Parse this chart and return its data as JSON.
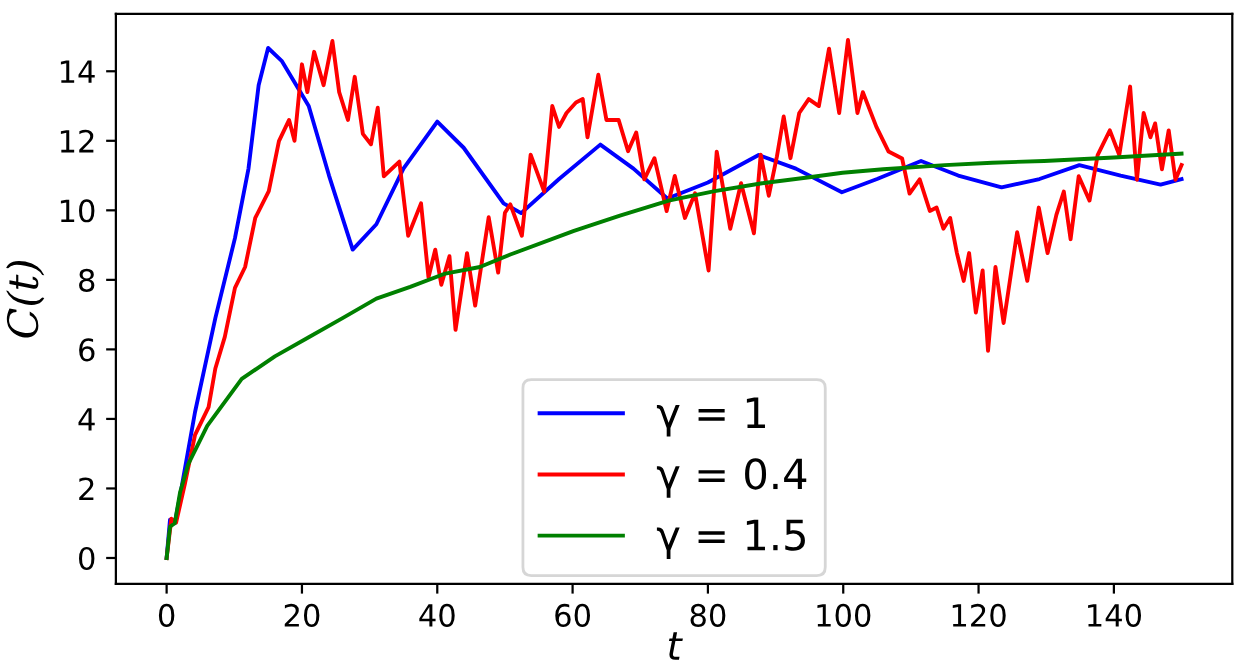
{
  "chart_data": {
    "type": "line",
    "xlabel": "t",
    "ylabel": "C(t)",
    "xlim": [
      -7.5,
      157.5
    ],
    "ylim": [
      -0.745,
      15.65
    ],
    "xticks": [
      0,
      20,
      40,
      60,
      80,
      100,
      120,
      140
    ],
    "yticks": [
      0,
      2,
      4,
      6,
      8,
      10,
      12,
      14
    ],
    "grid": false,
    "legend": "bottom",
    "marker": "none",
    "line_style": "solid",
    "series": [
      {
        "name": "γ = 1",
        "color": "#0000ff",
        "x": [
          0,
          0.5,
          1.2,
          2,
          4.2,
          7.2,
          10.1,
          12.1,
          13.6,
          15.0,
          17,
          21,
          24,
          27.5,
          31,
          35,
          40,
          43.9,
          49.8,
          52.4,
          58,
          64.1,
          69,
          74,
          80,
          87.5,
          93,
          99.8,
          105,
          111.5,
          117,
          123.4,
          129,
          134.9,
          141,
          146.9,
          150
        ],
        "values": [
          0,
          1.1,
          1.0,
          1.8,
          4.2,
          6.9,
          9.2,
          11.2,
          13.6,
          14.67,
          14.3,
          13.0,
          11.0,
          8.87,
          9.6,
          11.2,
          12.55,
          11.8,
          10.2,
          9.92,
          10.9,
          11.89,
          11.2,
          10.34,
          10.8,
          11.59,
          11.2,
          10.52,
          10.9,
          11.42,
          11.0,
          10.66,
          10.9,
          11.3,
          11.0,
          10.74,
          10.9
        ]
      },
      {
        "name": "γ = 0.4",
        "color": "#ff0000",
        "x": [
          0,
          0.7,
          1.4,
          2.7,
          4.2,
          6.2,
          7.2,
          8.6,
          10.1,
          11.6,
          13.1,
          15.1,
          16.6,
          18.1,
          18.9,
          20.0,
          20.8,
          21.8,
          23.2,
          24.5,
          25.5,
          26.8,
          27.8,
          29.0,
          30.2,
          31.2,
          32.1,
          34.4,
          35.7,
          37.6,
          38.7,
          39.7,
          40.6,
          41.8,
          42.7,
          44.4,
          45.6,
          47.6,
          49.0,
          50.0,
          50.8,
          52.5,
          53.8,
          55.8,
          57.0,
          58.0,
          59.1,
          60.5,
          61.5,
          62.2,
          63.8,
          65.0,
          66.8,
          68.2,
          69.4,
          70.6,
          72.1,
          73.9,
          75.1,
          76.6,
          78.1,
          80.1,
          81.3,
          83.3,
          84.9,
          86.8,
          87.8,
          89.0,
          90.2,
          91.2,
          92.2,
          93.5,
          94.9,
          96.4,
          97.9,
          99.4,
          100.7,
          102.1,
          102.9,
          104.9,
          106.7,
          108.7,
          109.8,
          111.3,
          112.8,
          113.8,
          114.8,
          115.8,
          116.8,
          117.8,
          118.6,
          119.6,
          120.6,
          121.4,
          122.5,
          123.7,
          125.7,
          127.2,
          128.9,
          130.2,
          131.5,
          132.6,
          133.6,
          134.8,
          136.4,
          137.6,
          139.4,
          140.8,
          142.4,
          143.4,
          144.4,
          145.4,
          146.1,
          147.1,
          148.1,
          149.1,
          150
        ],
        "values": [
          0,
          1.13,
          1.02,
          2.13,
          3.54,
          4.34,
          5.45,
          6.36,
          7.77,
          8.37,
          9.78,
          10.55,
          11.99,
          12.6,
          12.0,
          14.2,
          13.4,
          14.56,
          13.6,
          14.87,
          13.4,
          12.6,
          13.84,
          12.2,
          11.9,
          12.95,
          10.98,
          11.4,
          9.27,
          10.2,
          8.07,
          8.87,
          7.86,
          8.68,
          6.56,
          8.77,
          7.26,
          9.8,
          8.21,
          9.93,
          10.17,
          9.27,
          11.6,
          10.54,
          13.0,
          12.4,
          12.8,
          13.1,
          13.2,
          12.1,
          13.9,
          12.6,
          12.6,
          11.7,
          12.24,
          10.89,
          11.5,
          9.98,
          10.99,
          9.78,
          10.49,
          8.27,
          11.69,
          9.47,
          10.78,
          9.34,
          11.6,
          10.42,
          11.55,
          12.7,
          11.5,
          12.8,
          13.2,
          13.0,
          14.65,
          12.8,
          14.9,
          12.8,
          13.4,
          12.4,
          11.69,
          11.49,
          10.48,
          10.89,
          9.98,
          10.08,
          9.47,
          9.78,
          8.77,
          7.97,
          8.77,
          7.06,
          8.27,
          5.96,
          8.37,
          6.76,
          9.37,
          7.97,
          10.08,
          8.77,
          9.87,
          10.54,
          9.17,
          10.98,
          10.28,
          11.59,
          12.3,
          11.59,
          13.56,
          10.88,
          12.8,
          12.1,
          12.5,
          11.18,
          12.3,
          10.88,
          11.3
        ]
      },
      {
        "name": "γ = 1.5",
        "color": "#008000",
        "x": [
          0,
          0.5,
          1.2,
          2,
          3.2,
          6,
          11.1,
          16,
          21,
          26,
          31,
          36,
          41,
          46.3,
          50.8,
          60.2,
          67,
          74.2,
          81,
          88,
          95,
          99.9,
          105.9,
          115,
          122,
          129.7,
          140,
          150
        ],
        "values": [
          0,
          0.9,
          1.0,
          1.9,
          2.7,
          3.8,
          5.15,
          5.8,
          6.35,
          6.9,
          7.46,
          7.8,
          8.17,
          8.37,
          8.73,
          9.41,
          9.85,
          10.28,
          10.55,
          10.78,
          10.95,
          11.08,
          11.18,
          11.3,
          11.37,
          11.42,
          11.52,
          11.63
        ]
      }
    ]
  }
}
